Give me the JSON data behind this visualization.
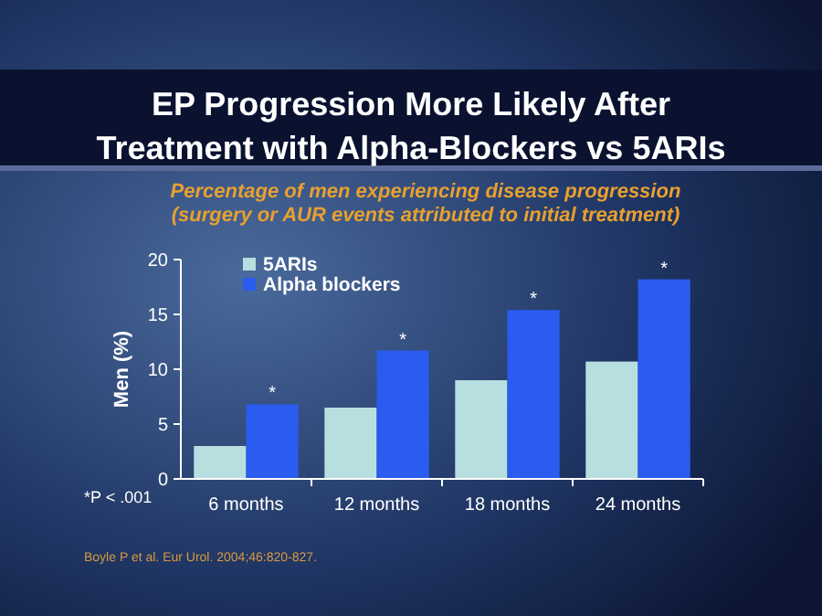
{
  "chart_data": {
    "type": "bar",
    "title": "EP Progression More Likely After\nTreatment with Alpha-Blockers vs 5ARIs",
    "subtitle": "Percentage of men experiencing disease progression\n(surgery or AUR events attributed to initial treatment)",
    "ylabel": "Men (%)",
    "categories": [
      "6 months",
      "12 months",
      "18 months",
      "24 months"
    ],
    "series": [
      {
        "name": "5ARIs",
        "color": "#b8dfe0",
        "values": [
          3.0,
          6.5,
          9.0,
          10.7
        ]
      },
      {
        "name": "Alpha blockers",
        "color": "#2a5cf0",
        "values": [
          6.8,
          11.7,
          15.4,
          18.2
        ]
      }
    ],
    "ylim": [
      0,
      20
    ],
    "yticks": [
      0,
      5,
      10,
      15,
      20
    ],
    "legend": "top left",
    "grid": false,
    "annotations": [
      {
        "text": "*",
        "x": "6 months",
        "y": 6.8
      },
      {
        "text": "*",
        "x": "12 months",
        "y": 11.7
      },
      {
        "text": "*",
        "x": "18 months",
        "y": 15.4
      },
      {
        "text": "*",
        "x": "24 months",
        "y": 18.2
      },
      "*P < .001",
      "Boyle P et al. Eur Urol. 2004;46:820-827."
    ]
  }
}
